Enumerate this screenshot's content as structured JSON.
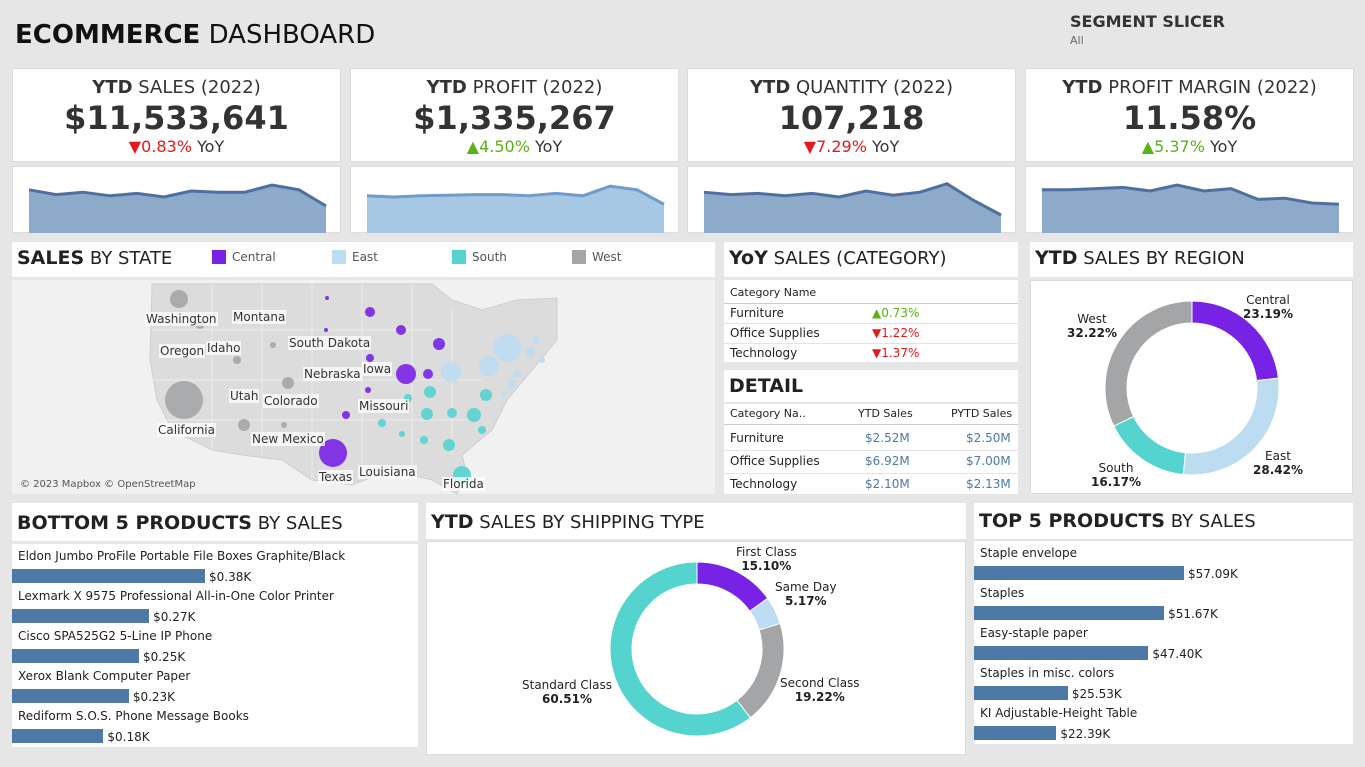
{
  "header": {
    "title_bold": "ECOMMERCE",
    "title_rest": "DASHBOARD",
    "slicer_label": "SEGMENT SLICER",
    "slicer_value": "All"
  },
  "kpis": [
    {
      "title_bold": "YTD",
      "title_rest": "SALES (2022)",
      "value": "$11,533,641",
      "change": "▼0.83%",
      "direction": "down",
      "yoy": "YoY",
      "trend": [
        0.72,
        0.64,
        0.68,
        0.62,
        0.66,
        0.6,
        0.7,
        0.68,
        0.68,
        0.8,
        0.72,
        0.45
      ]
    },
    {
      "title_bold": "YTD",
      "title_rest": "PROFIT (2022)",
      "value": "$1,335,267",
      "change": "▲4.50%",
      "direction": "up",
      "yoy": "YoY",
      "trend": [
        0.62,
        0.6,
        0.62,
        0.63,
        0.64,
        0.64,
        0.62,
        0.66,
        0.62,
        0.78,
        0.72,
        0.48
      ]
    },
    {
      "title_bold": "YTD",
      "title_rest": "QUANTITY (2022)",
      "value": "107,218",
      "change": "▼7.29%",
      "direction": "down",
      "yoy": "YoY",
      "trend": [
        0.68,
        0.64,
        0.66,
        0.62,
        0.66,
        0.6,
        0.7,
        0.63,
        0.68,
        0.82,
        0.54,
        0.3
      ]
    },
    {
      "title_bold": "YTD",
      "title_rest": "PROFIT MARGIN (2022)",
      "value": "11.58%",
      "change": "▲5.37%",
      "direction": "up",
      "yoy": "YoY",
      "trend": [
        0.72,
        0.72,
        0.74,
        0.76,
        0.7,
        0.8,
        0.7,
        0.74,
        0.56,
        0.58,
        0.5,
        0.48
      ]
    }
  ],
  "sales_by_state": {
    "title_bold": "SALES",
    "title_rest": "BY STATE",
    "legend": [
      {
        "name": "Central",
        "color": "#7722e5"
      },
      {
        "name": "East",
        "color": "#bcdcf2"
      },
      {
        "name": "South",
        "color": "#55d3cf"
      },
      {
        "name": "West",
        "color": "#a3a5a7"
      }
    ],
    "labels": [
      "Washington",
      "Montana",
      "Oregon",
      "Idaho",
      "South Dakota",
      "Nebraska",
      "Iowa",
      "Utah",
      "Colorado",
      "Missouri",
      "California",
      "New Mexico",
      "Texas",
      "Louisiana",
      "Florida"
    ],
    "attribution": "© 2023 Mapbox © OpenStreetMap"
  },
  "yoy_category": {
    "title_bold": "YoY",
    "title_rest": "SALES (CATEGORY)",
    "header": "Category Name",
    "rows": [
      {
        "name": "Furniture",
        "value": "▲0.73%",
        "direction": "up"
      },
      {
        "name": "Office Supplies",
        "value": "▼1.22%",
        "direction": "down"
      },
      {
        "name": "Technology",
        "value": "▼1.37%",
        "direction": "down"
      }
    ]
  },
  "detail": {
    "title": "DETAIL",
    "headers": [
      "Category Na..",
      "YTD Sales",
      "PYTD Sales"
    ],
    "rows": [
      {
        "name": "Furniture",
        "ytd": "$2.52M",
        "pytd": "$2.50M"
      },
      {
        "name": "Office Supplies",
        "ytd": "$6.92M",
        "pytd": "$7.00M"
      },
      {
        "name": "Technology",
        "ytd": "$2.10M",
        "pytd": "$2.13M"
      }
    ]
  },
  "region": {
    "title_bold": "YTD",
    "title_rest": "SALES BY REGION",
    "slices": [
      {
        "name": "Central",
        "pct": "23.19%",
        "value": 23.19,
        "color": "#7722e5"
      },
      {
        "name": "East",
        "pct": "28.42%",
        "value": 28.42,
        "color": "#bcdcf2"
      },
      {
        "name": "South",
        "pct": "16.17%",
        "value": 16.17,
        "color": "#55d3cf"
      },
      {
        "name": "West",
        "pct": "32.22%",
        "value": 32.22,
        "color": "#a3a5a7"
      }
    ]
  },
  "bottom5": {
    "title_bold": "BOTTOM 5 PRODUCTS",
    "title_rest": "BY SALES",
    "items": [
      {
        "name": "Eldon Jumbo ProFile Portable File Boxes Graphite/Black",
        "label": "$0.38K",
        "value": 0.38
      },
      {
        "name": "Lexmark X 9575 Professional All-in-One Color Printer",
        "label": "$0.27K",
        "value": 0.27
      },
      {
        "name": "Cisco SPA525G2 5-Line IP Phone",
        "label": "$0.25K",
        "value": 0.25
      },
      {
        "name": "Xerox Blank Computer Paper",
        "label": "$0.23K",
        "value": 0.23
      },
      {
        "name": "Rediform S.O.S. Phone Message Books",
        "label": "$0.18K",
        "value": 0.18
      }
    ]
  },
  "shipping": {
    "title_bold": "YTD",
    "title_rest": "SALES BY SHIPPING TYPE",
    "slices": [
      {
        "name": "First Class",
        "pct": "15.10%",
        "value": 15.1,
        "color": "#7722e5"
      },
      {
        "name": "Same Day",
        "pct": "5.17%",
        "value": 5.17,
        "color": "#bcdcf2"
      },
      {
        "name": "Second Class",
        "pct": "19.22%",
        "value": 19.22,
        "color": "#a3a5a7"
      },
      {
        "name": "Standard Class",
        "pct": "60.51%",
        "value": 60.51,
        "color": "#55d3cf"
      }
    ]
  },
  "top5": {
    "title_bold": "TOP 5 PRODUCTS",
    "title_rest": "BY SALES",
    "items": [
      {
        "name": "Staple envelope",
        "label": "$57.09K",
        "value": 57.09
      },
      {
        "name": "Staples",
        "label": "$51.67K",
        "value": 51.67
      },
      {
        "name": "Easy-staple paper",
        "label": "$47.40K",
        "value": 47.4
      },
      {
        "name": "Staples in misc. colors",
        "label": "$25.53K",
        "value": 25.53
      },
      {
        "name": "KI Adjustable-Height Table",
        "label": "$22.39K",
        "value": 22.39
      }
    ]
  },
  "chart_data": [
    {
      "type": "bar",
      "categories": [
        "Eldon Jumbo ProFile Portable File Boxes Graphite/Black",
        "Lexmark X 9575 Professional All-in-One Color Printer",
        "Cisco SPA525G2 5-Line IP Phone",
        "Xerox Blank Computer Paper",
        "Rediform S.O.S. Phone Message Books"
      ],
      "values": [
        0.38,
        0.27,
        0.25,
        0.23,
        0.18
      ],
      "title": "BOTTOM 5 PRODUCTS BY SALES"
    },
    {
      "type": "bar",
      "categories": [
        "Staple envelope",
        "Staples",
        "Easy-staple paper",
        "Staples in misc. colors",
        "KI Adjustable-Height Table"
      ],
      "values": [
        57.09,
        51.67,
        47.4,
        25.53,
        22.39
      ],
      "title": "TOP 5 PRODUCTS BY SALES"
    },
    {
      "type": "pie",
      "categories": [
        "Central",
        "East",
        "South",
        "West"
      ],
      "values": [
        23.19,
        28.42,
        16.17,
        32.22
      ],
      "title": "YTD SALES BY REGION"
    },
    {
      "type": "pie",
      "categories": [
        "First Class",
        "Same Day",
        "Second Class",
        "Standard Class"
      ],
      "values": [
        15.1,
        5.17,
        19.22,
        60.51
      ],
      "title": "YTD SALES BY SHIPPING TYPE"
    }
  ]
}
